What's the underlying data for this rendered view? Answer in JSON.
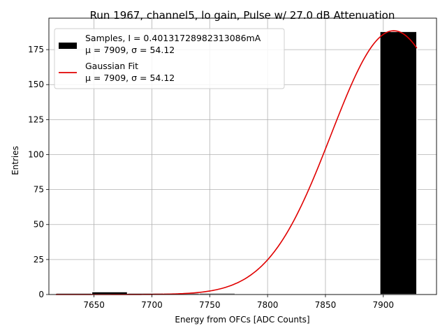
{
  "chart_data": {
    "type": "bar",
    "title": "Run 1967, channel5, lo gain, Pulse w/ 27.0 dB Attenuation",
    "xlabel": "Energy from OFCs [ADC Counts]",
    "ylabel": "Entries",
    "xlim": [
      7611,
      7946
    ],
    "ylim": [
      0,
      197.5
    ],
    "xticks": [
      7650,
      7700,
      7750,
      7800,
      7850,
      7900
    ],
    "yticks": [
      0,
      25,
      50,
      75,
      100,
      125,
      150,
      175
    ],
    "grid": true,
    "legend_position": "upper-left",
    "histogram": {
      "name": "Samples, I = 0.40131728982313086mA",
      "stats": "μ = 7909, σ = 54.12",
      "color": "#000000",
      "bins": [
        {
          "x0": 7617,
          "x1": 7648,
          "value": 1
        },
        {
          "x0": 7648,
          "x1": 7679,
          "value": 2
        },
        {
          "x0": 7679,
          "x1": 7710,
          "value": 1
        },
        {
          "x0": 7710,
          "x1": 7741,
          "value": 1
        },
        {
          "x0": 7741,
          "x1": 7772,
          "value": 1
        },
        {
          "x0": 7772,
          "x1": 7803,
          "value": 0
        },
        {
          "x0": 7803,
          "x1": 7834,
          "value": 0
        },
        {
          "x0": 7834,
          "x1": 7866,
          "value": 0
        },
        {
          "x0": 7866,
          "x1": 7897,
          "value": 0
        },
        {
          "x0": 7897,
          "x1": 7929,
          "value": 188
        }
      ]
    },
    "fit": {
      "name": "Gaussian Fit",
      "stats": "μ = 7909, σ = 54.12",
      "color": "#e00000",
      "amplitude": 188.5,
      "mu": 7909,
      "sigma": 54.12,
      "x_range": [
        7617,
        7929
      ]
    }
  }
}
